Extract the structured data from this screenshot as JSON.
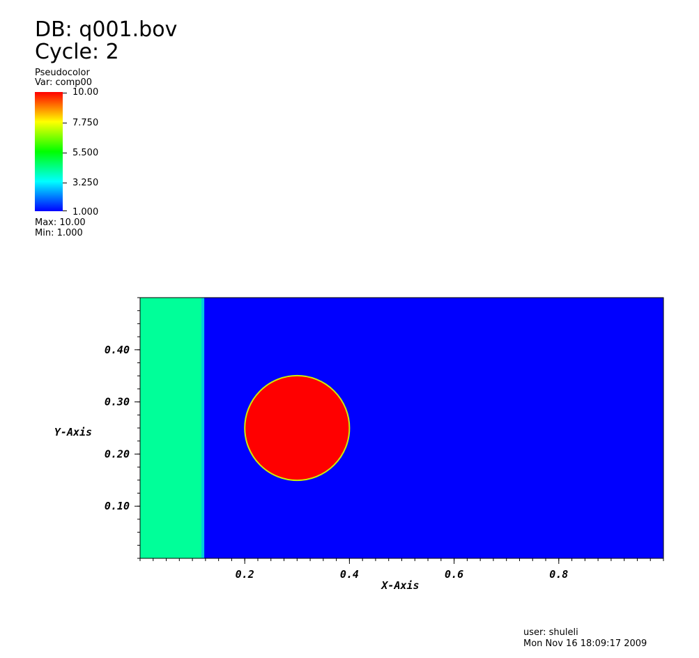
{
  "header": {
    "db_line": "DB: q001.bov",
    "cycle_line": "Cycle: 2"
  },
  "legend": {
    "plot_type": "Pseudocolor",
    "var_label": "Var: comp00",
    "ticks": [
      "10.00",
      "7.750",
      "5.500",
      "3.250",
      "1.000"
    ],
    "max_label": "Max:  10.00",
    "min_label": "Min:  1.000",
    "colormap": [
      "#0000ff",
      "#00ffff",
      "#00ff00",
      "#ffff00",
      "#ff0000"
    ]
  },
  "footer": {
    "user_line": "user: shuleli",
    "date_line": "Mon Nov 16 18:09:17 2009"
  },
  "chart_data": {
    "type": "heatmap",
    "xlabel": "X-Axis",
    "ylabel": "Y-Axis",
    "xlim": [
      0.0,
      1.0
    ],
    "ylim": [
      0.0,
      0.5
    ],
    "xticks": [
      0.2,
      0.4,
      0.6,
      0.8
    ],
    "yticks": [
      0.1,
      0.2,
      0.3,
      0.4
    ],
    "xtick_labels": [
      "0.2",
      "0.4",
      "0.6",
      "0.8"
    ],
    "ytick_labels": [
      "0.10",
      "0.20",
      "0.30",
      "0.40"
    ],
    "background": {
      "value": 1.0,
      "color": "#0000ff"
    },
    "regions": [
      {
        "shape": "band",
        "x_range": [
          0.0,
          0.12
        ],
        "value": 5.5,
        "color": "#00ff99"
      },
      {
        "shape": "circle",
        "center": [
          0.3,
          0.25
        ],
        "radius": 0.1,
        "value": 10.0,
        "color": "#ff0000",
        "edge_color": "#ccee00"
      }
    ]
  }
}
